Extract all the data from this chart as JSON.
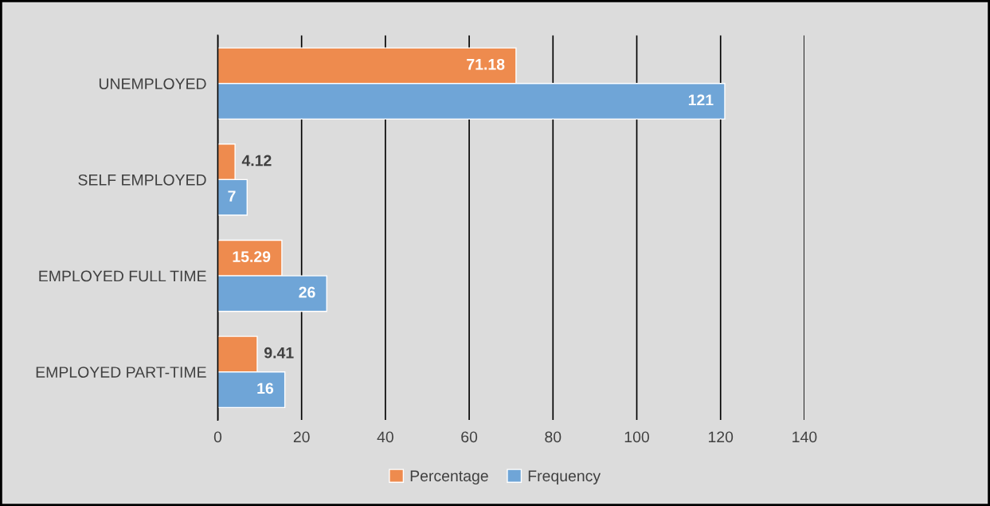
{
  "chart_data": {
    "type": "bar",
    "orientation": "horizontal",
    "categories": [
      "UNEMPLOYED",
      "SELF EMPLOYED",
      "EMPLOYED FULL TIME",
      "EMPLOYED PART-TIME"
    ],
    "series": [
      {
        "name": "Percentage",
        "color": "#ee8b4e",
        "values": [
          71.18,
          4.12,
          15.29,
          9.41
        ]
      },
      {
        "name": "Frequency",
        "color": "#6fa5d7",
        "values": [
          121,
          7,
          26,
          16
        ]
      }
    ],
    "xlim": [
      0,
      140
    ],
    "xticks": [
      0,
      20,
      40,
      60,
      80,
      100,
      120,
      140
    ],
    "grid": "x",
    "legend": "bottom",
    "data_labels": true
  }
}
